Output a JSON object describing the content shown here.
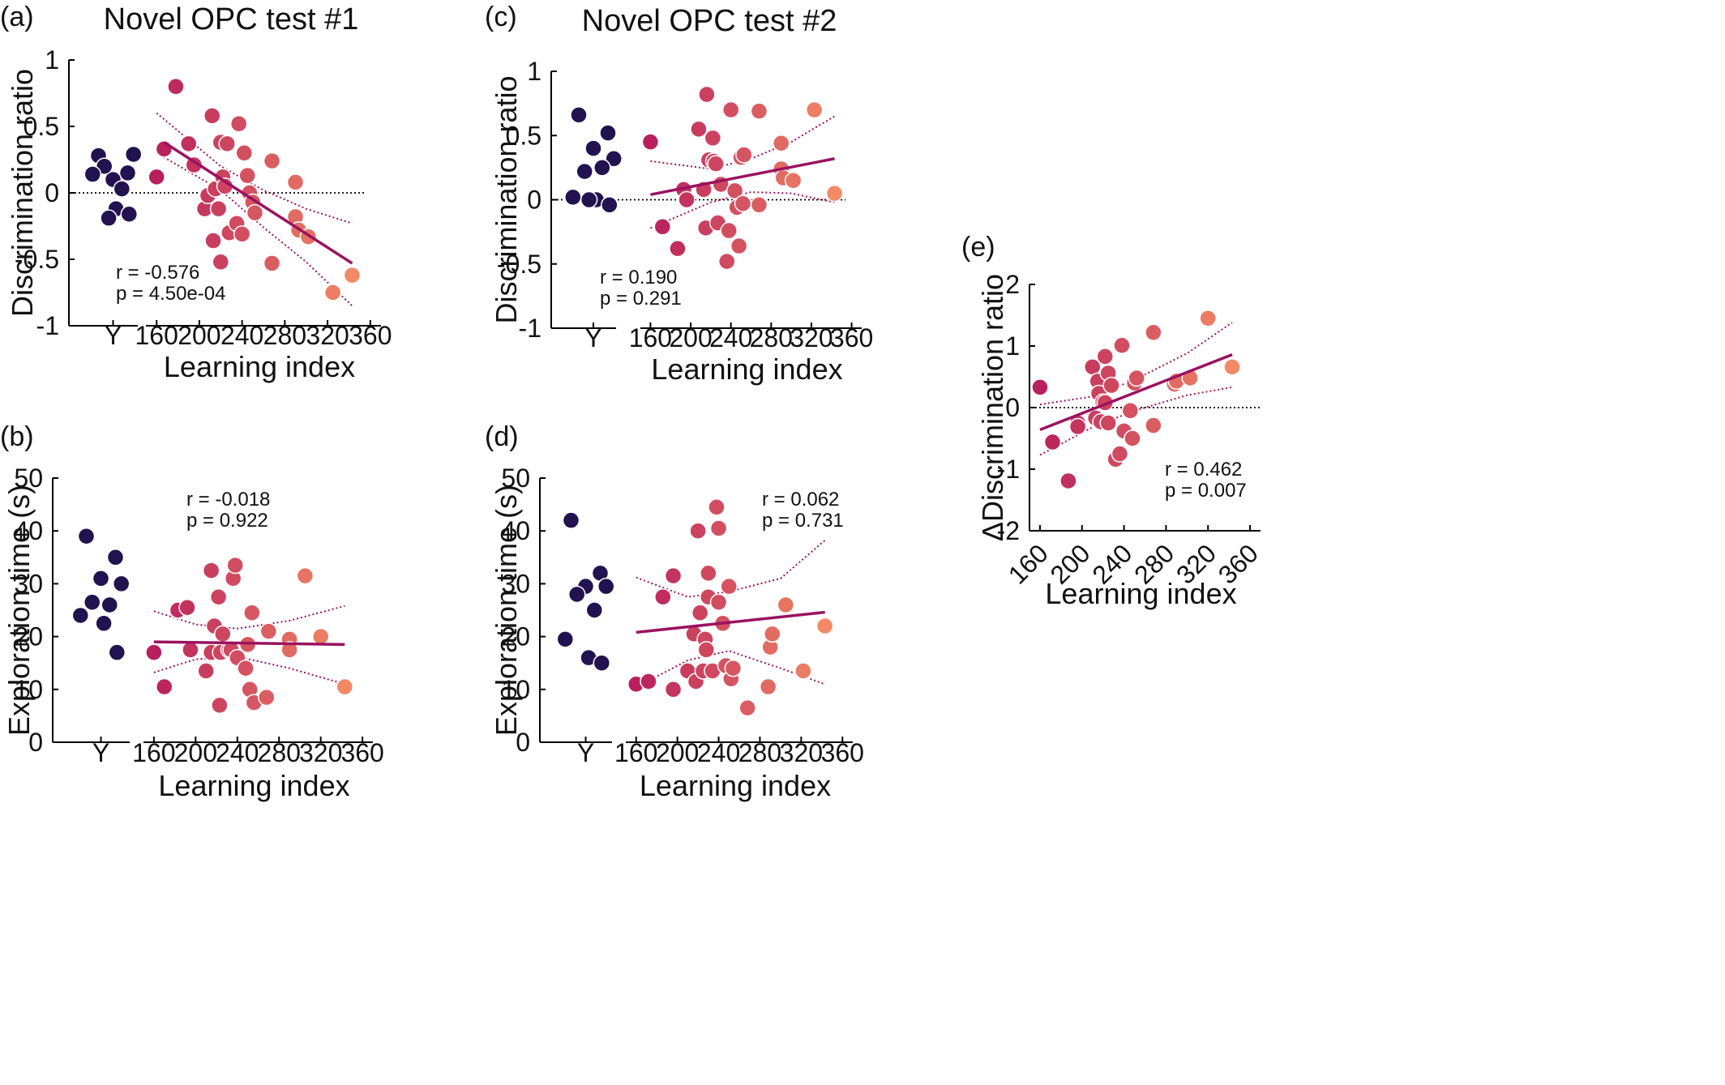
{
  "colors": {
    "young": "#22124f",
    "fit_line": "#9b1260",
    "ci_line": "#9b1260",
    "zero_line": "#000000",
    "gradient_low": "#b81f5c",
    "gradient_high": "#f28a65"
  },
  "chart_data": [
    {
      "id": "a",
      "panel_label": "(a)",
      "title": "Novel OPC test #1",
      "type": "scatter",
      "ylabel": "Discrimination ratio",
      "xlabel": "Learning index",
      "young_label": "Y",
      "ylim": [
        -1,
        1
      ],
      "yticks": [
        1,
        0.5,
        0,
        -0.5,
        -1
      ],
      "ytick_labels": [
        "1",
        "0.5",
        "0",
        "-0.5",
        "-1"
      ],
      "xlim": [
        150,
        370
      ],
      "xticks": [
        160,
        200,
        240,
        280,
        320,
        360
      ],
      "ytick_label_side": "right",
      "zero_line": true,
      "young": [
        0.28,
        0.15,
        0.1,
        0.29,
        0.2,
        0.03,
        0.14,
        -0.12,
        -0.16,
        -0.19
      ],
      "points": [
        [
          160,
          0.12
        ],
        [
          167,
          0.33
        ],
        [
          178,
          0.8
        ],
        [
          190,
          0.37
        ],
        [
          195,
          0.21
        ],
        [
          205,
          -0.12
        ],
        [
          208,
          -0.02
        ],
        [
          212,
          0.58
        ],
        [
          213,
          -0.36
        ],
        [
          215,
          0.03
        ],
        [
          218,
          -0.12
        ],
        [
          220,
          -0.52
        ],
        [
          220,
          0.38
        ],
        [
          222,
          0.12
        ],
        [
          224,
          0.05
        ],
        [
          226,
          0.37
        ],
        [
          228,
          -0.3
        ],
        [
          235,
          -0.23
        ],
        [
          237,
          0.52
        ],
        [
          240,
          -0.31
        ],
        [
          242,
          0.3
        ],
        [
          245,
          0.13
        ],
        [
          247,
          0.0
        ],
        [
          250,
          -0.07
        ],
        [
          252,
          -0.15
        ],
        [
          268,
          -0.53
        ],
        [
          268,
          0.24
        ],
        [
          290,
          0.08
        ],
        [
          290,
          -0.18
        ],
        [
          293,
          -0.28
        ],
        [
          302,
          -0.33
        ],
        [
          325,
          -0.75
        ],
        [
          343,
          -0.62
        ]
      ],
      "fit": [
        [
          167,
          0.38
        ],
        [
          343,
          -0.53
        ]
      ],
      "ci_upper": [
        [
          160,
          0.6
        ],
        [
          220,
          0.2
        ],
        [
          260,
          0.02
        ],
        [
          300,
          -0.12
        ],
        [
          343,
          -0.23
        ]
      ],
      "ci_lower": [
        [
          160,
          0.3
        ],
        [
          220,
          0.02
        ],
        [
          260,
          -0.26
        ],
        [
          300,
          -0.52
        ],
        [
          343,
          -0.85
        ]
      ],
      "stats": {
        "r": "r  = -0.576",
        "p": "p = 4.50e-04"
      }
    },
    {
      "id": "c",
      "panel_label": "(c)",
      "title": "Novel OPC test #2",
      "type": "scatter",
      "ylabel": "Discrimination ratio",
      "xlabel": "Learning index",
      "young_label": "Y",
      "ylim": [
        -1,
        1
      ],
      "yticks": [
        1,
        0.5,
        0,
        -0.5,
        -1
      ],
      "ytick_labels": [
        "1",
        "0.5",
        "0",
        "-0.5",
        "-1"
      ],
      "xlim": [
        150,
        370
      ],
      "xticks": [
        160,
        200,
        240,
        280,
        320,
        360
      ],
      "ytick_label_side": "right",
      "zero_line": true,
      "young": [
        0.66,
        0.52,
        0.4,
        0.32,
        0.22,
        0.25,
        0.02,
        0.0,
        -0.04,
        0.0
      ],
      "points": [
        [
          160,
          0.45
        ],
        [
          172,
          -0.21
        ],
        [
          187,
          -0.38
        ],
        [
          193,
          0.08
        ],
        [
          196,
          0.0
        ],
        [
          208,
          0.55
        ],
        [
          213,
          0.08
        ],
        [
          215,
          -0.22
        ],
        [
          216,
          0.82
        ],
        [
          218,
          0.31
        ],
        [
          222,
          0.48
        ],
        [
          223,
          0.3
        ],
        [
          225,
          0.28
        ],
        [
          227,
          -0.18
        ],
        [
          230,
          0.12
        ],
        [
          236,
          -0.48
        ],
        [
          238,
          -0.24
        ],
        [
          240,
          0.7
        ],
        [
          244,
          0.07
        ],
        [
          246,
          -0.06
        ],
        [
          248,
          -0.36
        ],
        [
          250,
          0.33
        ],
        [
          252,
          -0.03
        ],
        [
          253,
          0.35
        ],
        [
          268,
          0.69
        ],
        [
          268,
          -0.04
        ],
        [
          290,
          0.44
        ],
        [
          290,
          0.24
        ],
        [
          292,
          0.17
        ],
        [
          302,
          0.15
        ],
        [
          323,
          0.7
        ],
        [
          343,
          0.05
        ]
      ],
      "fit": [
        [
          160,
          0.04
        ],
        [
          343,
          0.32
        ]
      ],
      "ci_upper": [
        [
          160,
          0.3
        ],
        [
          220,
          0.24
        ],
        [
          260,
          0.32
        ],
        [
          300,
          0.45
        ],
        [
          343,
          0.65
        ]
      ],
      "ci_lower": [
        [
          160,
          -0.22
        ],
        [
          220,
          -0.02
        ],
        [
          260,
          0.06
        ],
        [
          300,
          0.05
        ],
        [
          343,
          -0.02
        ]
      ],
      "stats": {
        "r": "r  = 0.190",
        "p": "p = 0.291"
      }
    },
    {
      "id": "b",
      "panel_label": "(b)",
      "title": "",
      "type": "scatter",
      "ylabel": "Exploration time (s)",
      "xlabel": "Learning index",
      "young_label": "Y",
      "ylim": [
        0,
        50
      ],
      "yticks": [
        50,
        40,
        30,
        20,
        10,
        0
      ],
      "ytick_labels": [
        "50",
        "40",
        "30",
        "20",
        "10",
        "0"
      ],
      "xlim": [
        150,
        370
      ],
      "xticks": [
        160,
        200,
        240,
        280,
        320,
        360
      ],
      "ytick_label_side": "right",
      "zero_line": false,
      "young": [
        39,
        35,
        31,
        30,
        26.5,
        26,
        24,
        22.5,
        17
      ],
      "points": [
        [
          160,
          17
        ],
        [
          170,
          10.5
        ],
        [
          183,
          25
        ],
        [
          192,
          25.5
        ],
        [
          195,
          17.5
        ],
        [
          210,
          13.5
        ],
        [
          215,
          17
        ],
        [
          215,
          32.5
        ],
        [
          218,
          22
        ],
        [
          222,
          27.5
        ],
        [
          223,
          7
        ],
        [
          224,
          17
        ],
        [
          226,
          20.5
        ],
        [
          232,
          17.5
        ],
        [
          234,
          17.5
        ],
        [
          236,
          31
        ],
        [
          238,
          33.5
        ],
        [
          240,
          16
        ],
        [
          248,
          14
        ],
        [
          250,
          18.5
        ],
        [
          252,
          10
        ],
        [
          254,
          24.5
        ],
        [
          256,
          7.5
        ],
        [
          268,
          8.5
        ],
        [
          270,
          21
        ],
        [
          290,
          19.5
        ],
        [
          290,
          17.5
        ],
        [
          305,
          31.5
        ],
        [
          320,
          20
        ],
        [
          343,
          10.5
        ]
      ],
      "fit": [
        [
          160,
          19
        ],
        [
          343,
          18.5
        ]
      ],
      "ci_upper": [
        [
          160,
          24.8
        ],
        [
          200,
          22.3
        ],
        [
          240,
          21.5
        ],
        [
          290,
          23
        ],
        [
          343,
          25.8
        ]
      ],
      "ci_lower": [
        [
          160,
          13.2
        ],
        [
          200,
          15.7
        ],
        [
          240,
          16.2
        ],
        [
          290,
          14
        ],
        [
          343,
          11
        ]
      ],
      "stats": {
        "r": "r  = -0.018",
        "p": "p = 0.922"
      }
    },
    {
      "id": "d",
      "panel_label": "(d)",
      "title": "",
      "type": "scatter",
      "ylabel": "Exploration time (s)",
      "xlabel": "Learning index",
      "young_label": "Y",
      "ylim": [
        0,
        50
      ],
      "yticks": [
        50,
        40,
        30,
        20,
        10,
        0
      ],
      "ytick_labels": [
        "50",
        "40",
        "30",
        "20",
        "10",
        "0"
      ],
      "xlim": [
        150,
        370
      ],
      "xticks": [
        160,
        200,
        240,
        280,
        320,
        360
      ],
      "ytick_label_side": "right",
      "zero_line": false,
      "young": [
        42,
        32,
        29.5,
        29.5,
        28,
        25,
        19.5,
        16,
        15
      ],
      "points": [
        [
          160,
          11
        ],
        [
          172,
          11.5
        ],
        [
          186,
          27.5
        ],
        [
          196,
          31.5
        ],
        [
          196,
          10
        ],
        [
          210,
          13.5
        ],
        [
          216,
          20.5
        ],
        [
          218,
          11.5
        ],
        [
          220,
          40
        ],
        [
          222,
          24.5
        ],
        [
          225,
          13.5
        ],
        [
          227,
          19.5
        ],
        [
          228,
          17.5
        ],
        [
          230,
          27.5
        ],
        [
          230,
          32
        ],
        [
          234,
          13.5
        ],
        [
          238,
          44.5
        ],
        [
          240,
          40.5
        ],
        [
          240,
          26.5
        ],
        [
          244,
          22.5
        ],
        [
          247,
          14.5
        ],
        [
          250,
          29.5
        ],
        [
          252,
          12
        ],
        [
          254,
          14
        ],
        [
          268,
          6.5
        ],
        [
          288,
          10.5
        ],
        [
          290,
          18
        ],
        [
          292,
          20.5
        ],
        [
          305,
          26
        ],
        [
          322,
          13.5
        ],
        [
          343,
          22
        ]
      ],
      "fit": [
        [
          160,
          20.8
        ],
        [
          343,
          24.6
        ]
      ],
      "ci_upper": [
        [
          160,
          31.2
        ],
        [
          210,
          27.5
        ],
        [
          250,
          28.5
        ],
        [
          300,
          31
        ],
        [
          343,
          38.2
        ]
      ],
      "ci_lower": [
        [
          160,
          10.4
        ],
        [
          210,
          15.5
        ],
        [
          250,
          17.3
        ],
        [
          300,
          14
        ],
        [
          343,
          11
        ]
      ],
      "stats": {
        "r": "r  = 0.062",
        "p": "p = 0.731"
      }
    },
    {
      "id": "e",
      "panel_label": "(e)",
      "title": "",
      "type": "scatter",
      "ylabel": "ΔDiscrimination ratio",
      "xlabel": "Learning index",
      "young_label": "",
      "ylim": [
        -2,
        2
      ],
      "yticks": [
        2,
        1,
        0,
        -1,
        -2
      ],
      "ytick_labels": [
        "2",
        "1",
        "0",
        "-1",
        "-2"
      ],
      "xlim": [
        150,
        370
      ],
      "xticks": [
        160,
        200,
        240,
        280,
        320,
        360
      ],
      "ytick_label_side": "left",
      "xtick_rotate": true,
      "zero_line": true,
      "young": [],
      "points": [
        [
          160,
          0.33
        ],
        [
          172,
          -0.56
        ],
        [
          187,
          -1.19
        ],
        [
          196,
          -0.25
        ],
        [
          196,
          -0.31
        ],
        [
          210,
          0.66
        ],
        [
          213,
          -0.17
        ],
        [
          215,
          0.43
        ],
        [
          216,
          0.23
        ],
        [
          218,
          -0.23
        ],
        [
          220,
          0.09
        ],
        [
          222,
          0.08
        ],
        [
          222,
          0.83
        ],
        [
          225,
          0.56
        ],
        [
          225,
          -0.25
        ],
        [
          228,
          0.36
        ],
        [
          232,
          -0.84
        ],
        [
          236,
          -0.75
        ],
        [
          238,
          1.01
        ],
        [
          240,
          -0.38
        ],
        [
          246,
          -0.05
        ],
        [
          248,
          -0.5
        ],
        [
          250,
          0.4
        ],
        [
          252,
          0.48
        ],
        [
          268,
          1.22
        ],
        [
          268,
          -0.29
        ],
        [
          288,
          0.38
        ],
        [
          290,
          0.43
        ],
        [
          303,
          0.48
        ],
        [
          320,
          1.45
        ],
        [
          343,
          0.66
        ]
      ],
      "fit": [
        [
          160,
          -0.36
        ],
        [
          343,
          0.86
        ]
      ],
      "ci_upper": [
        [
          160,
          0.05
        ],
        [
          210,
          0.18
        ],
        [
          250,
          0.45
        ],
        [
          300,
          0.88
        ],
        [
          343,
          1.38
        ]
      ],
      "ci_lower": [
        [
          160,
          -0.77
        ],
        [
          210,
          -0.32
        ],
        [
          250,
          -0.05
        ],
        [
          300,
          0.2
        ],
        [
          343,
          0.33
        ]
      ],
      "stats": {
        "r": "r  = 0.462",
        "p": "p = 0.007"
      }
    }
  ]
}
